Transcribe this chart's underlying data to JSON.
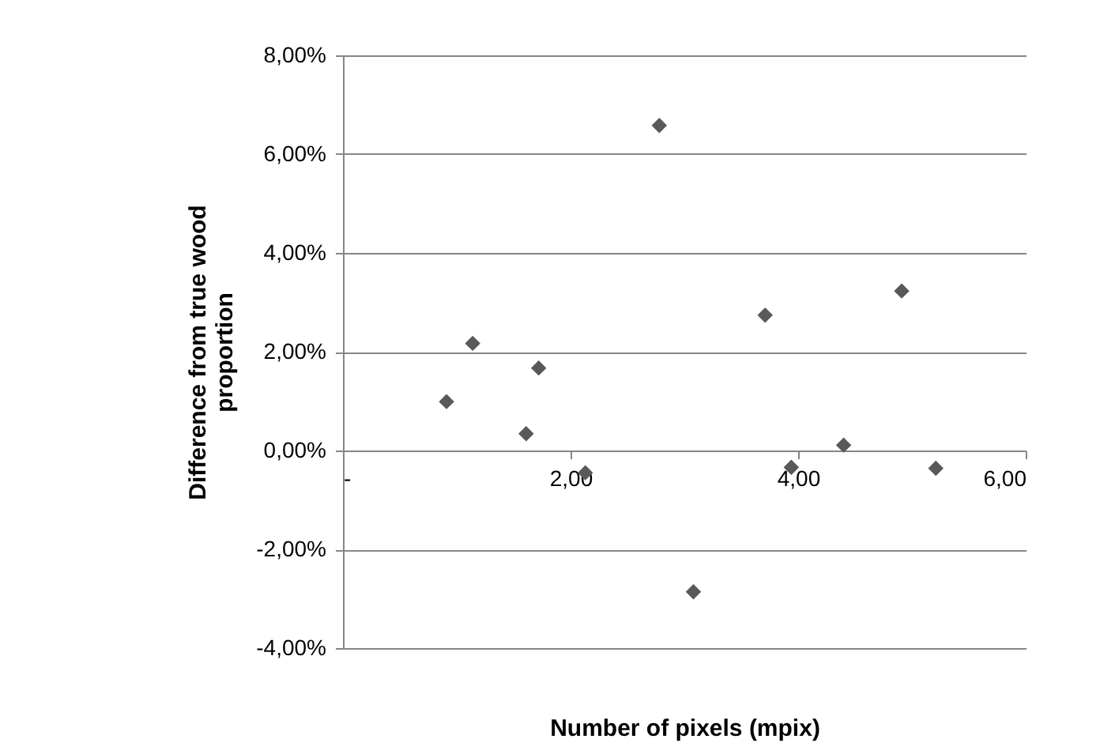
{
  "chart_data": {
    "type": "scatter",
    "xlabel": "Number of pixels (mpix)",
    "ylabel": "Difference from true wood proportion",
    "x": [
      0.91,
      1.14,
      1.61,
      1.72,
      2.13,
      2.78,
      3.08,
      3.71,
      3.94,
      4.4,
      4.91,
      5.21
    ],
    "series": [
      {
        "color": "#595959",
        "values": [
          0.99,
          2.17,
          0.34,
          1.67,
          -0.45,
          6.58,
          -2.86,
          2.74,
          -0.34,
          0.11,
          3.23,
          -0.36
        ]
      }
    ],
    "xlim": [
      0,
      6
    ],
    "xticks": [
      {
        "value": 0,
        "label": "-"
      },
      {
        "value": 2,
        "label": "2,00"
      },
      {
        "value": 4,
        "label": "4,00"
      },
      {
        "value": 6,
        "label": "6,00"
      }
    ],
    "ylim": [
      -4,
      8
    ],
    "yticks": [
      {
        "value": -4,
        "label": "-4,00%"
      },
      {
        "value": -2,
        "label": "-2,00%"
      },
      {
        "value": 0,
        "label": "0,00%"
      },
      {
        "value": 2,
        "label": "2,00%"
      },
      {
        "value": 4,
        "label": "4,00%"
      },
      {
        "value": 6,
        "label": "6,00%"
      },
      {
        "value": 8,
        "label": "8,00%"
      }
    ],
    "grid": "y",
    "marker": "diamond"
  }
}
